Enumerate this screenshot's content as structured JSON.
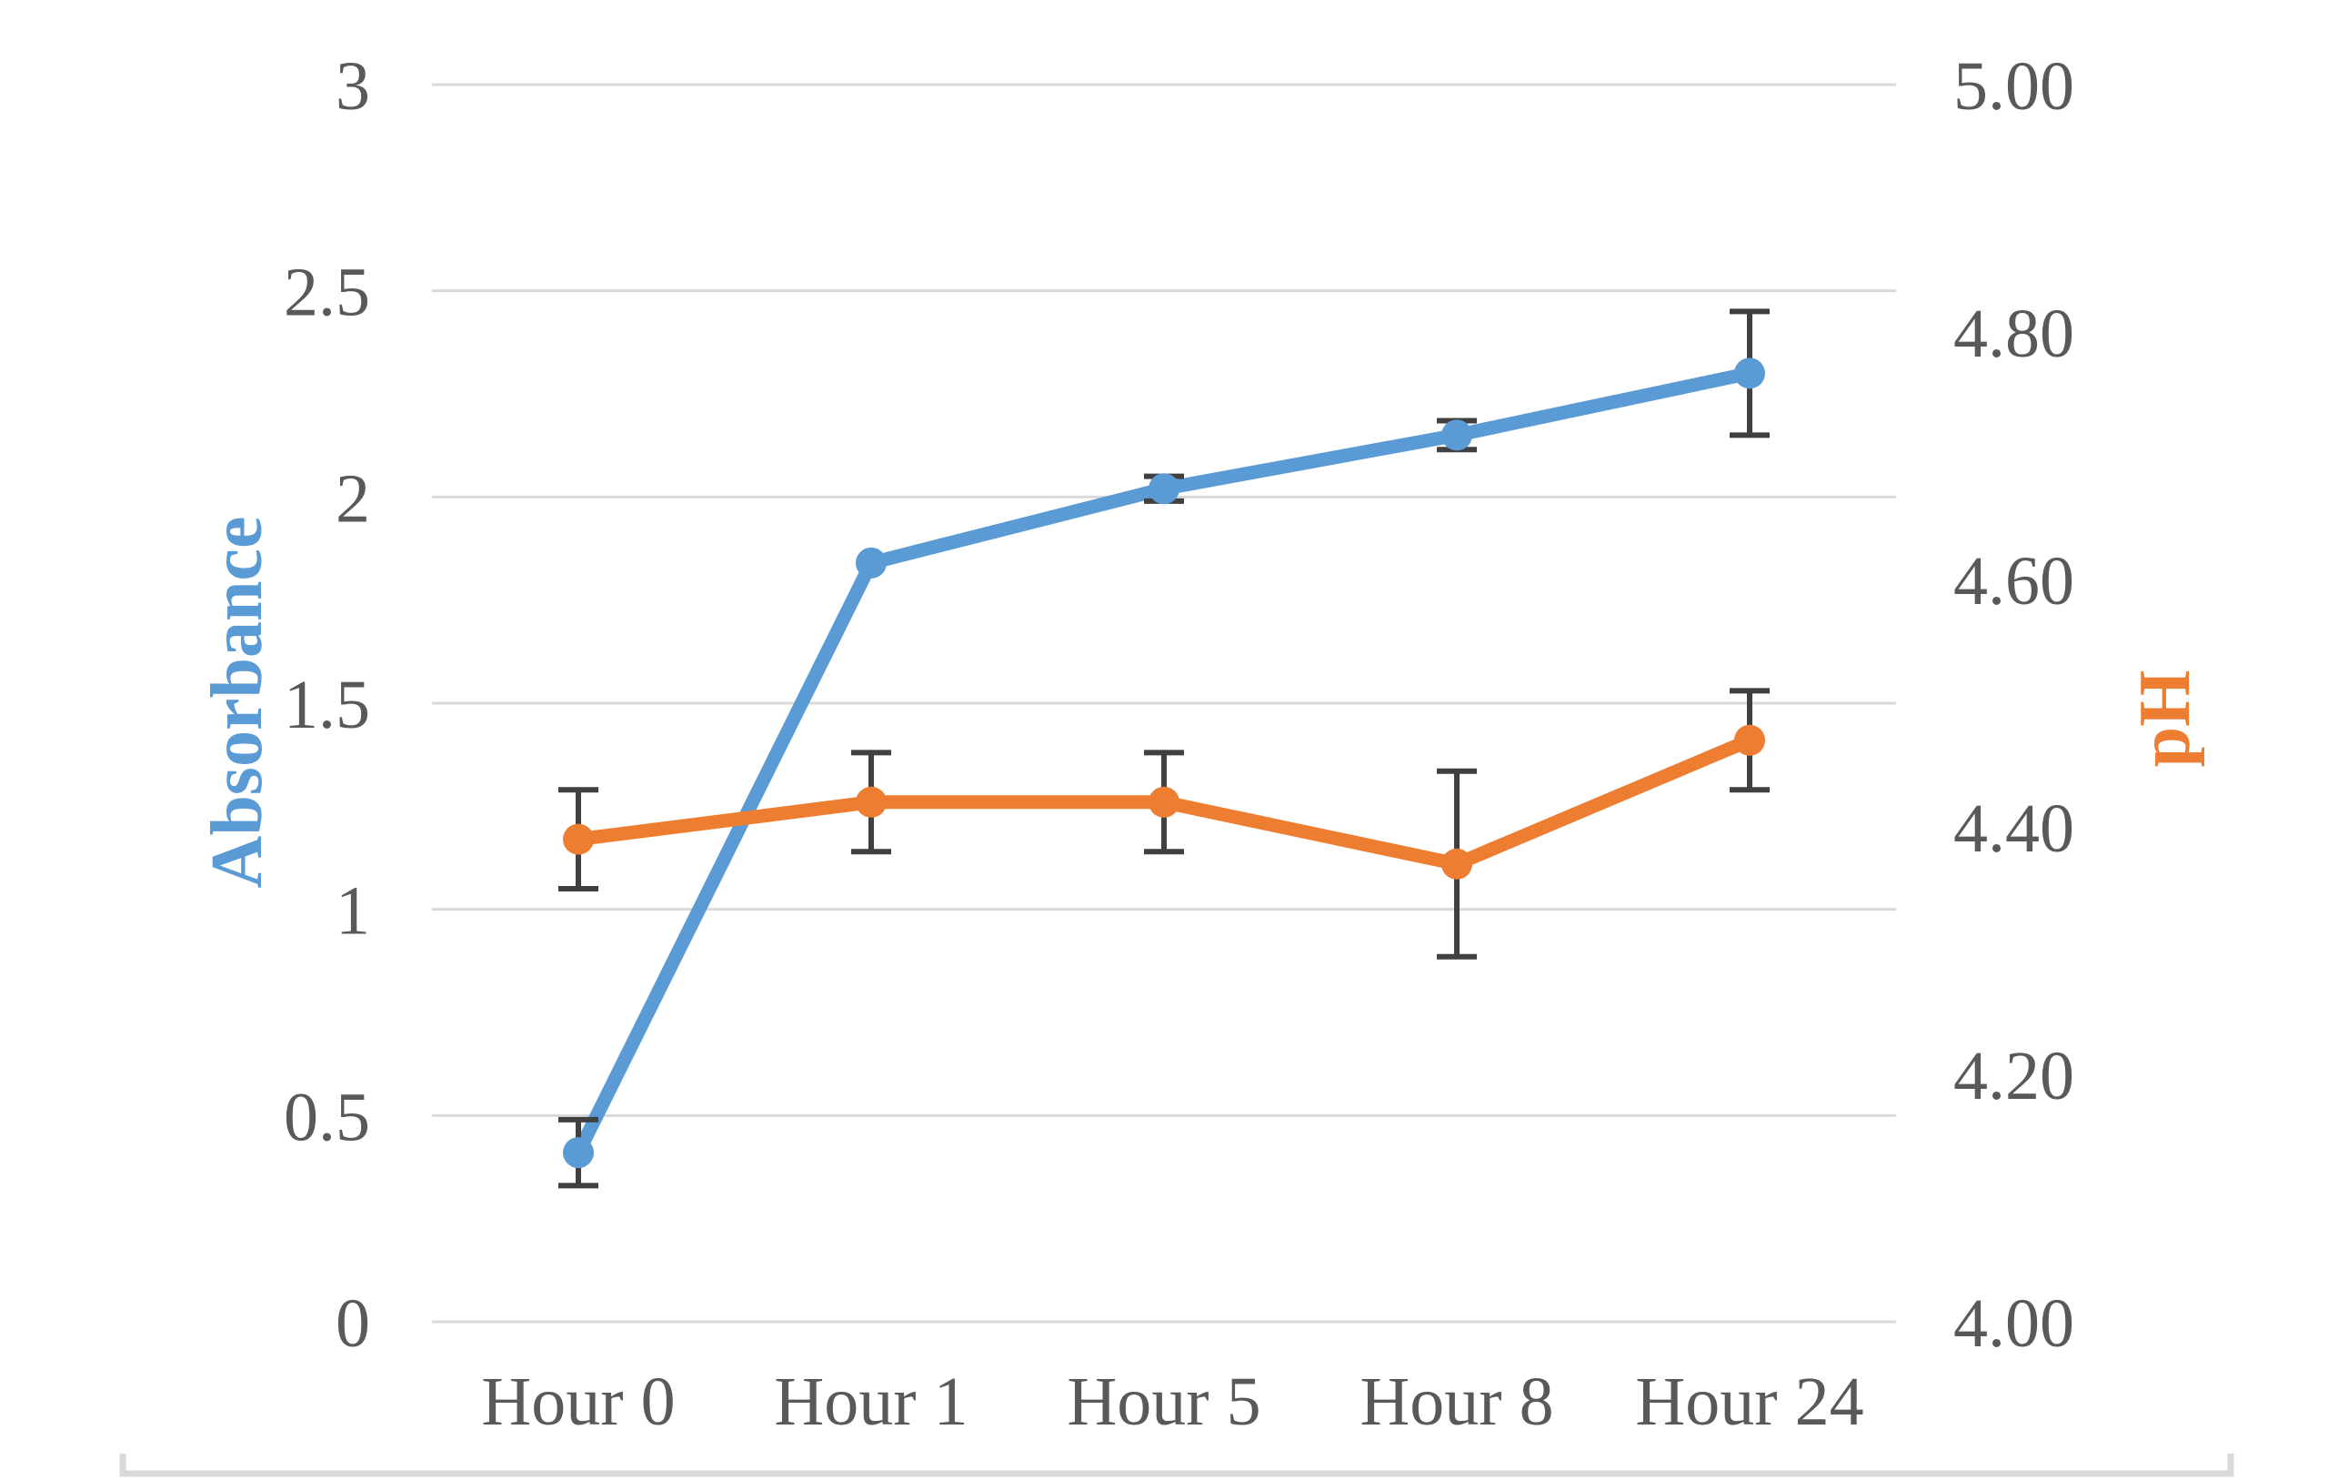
{
  "chart_data": {
    "type": "line",
    "title": "",
    "categories": [
      "Hour 0",
      "Hour 1",
      "Hour 5",
      "Hour 8",
      "Hour 24"
    ],
    "series": [
      {
        "name": "Absorbance",
        "axis": "left",
        "color": "#5B9BD5",
        "values": [
          0.41,
          1.84,
          2.02,
          2.15,
          2.3
        ],
        "error": [
          0.08,
          0,
          0.03,
          0.035,
          0.15
        ]
      },
      {
        "name": "pH",
        "axis": "right",
        "color": "#ED7D31",
        "values": [
          4.39,
          4.42,
          4.42,
          4.37,
          4.47
        ],
        "error": [
          0.04,
          0.04,
          0.04,
          0.075,
          0.04
        ]
      }
    ],
    "left_axis": {
      "label": "Absorbance",
      "color": "#5B9BD5",
      "min": 0,
      "max": 3,
      "step": 0.5,
      "ticks": [
        "0",
        "0.5",
        "1",
        "1.5",
        "2",
        "2.5",
        "3"
      ]
    },
    "right_axis": {
      "label": "pH",
      "color": "#ED7D31",
      "min": 4.0,
      "max": 5.0,
      "step": 0.2,
      "ticks": [
        "4.00",
        "4.20",
        "4.40",
        "4.60",
        "4.80",
        "5.00"
      ]
    },
    "x_axis": {
      "label": ""
    },
    "grid": true,
    "legend": "none",
    "marker": "circle",
    "error_bars": true,
    "colors": {
      "grid": "#D9D9D9",
      "tick_text": "#595959",
      "error_bar": "#404040",
      "frame": "#D9D9D9"
    }
  }
}
